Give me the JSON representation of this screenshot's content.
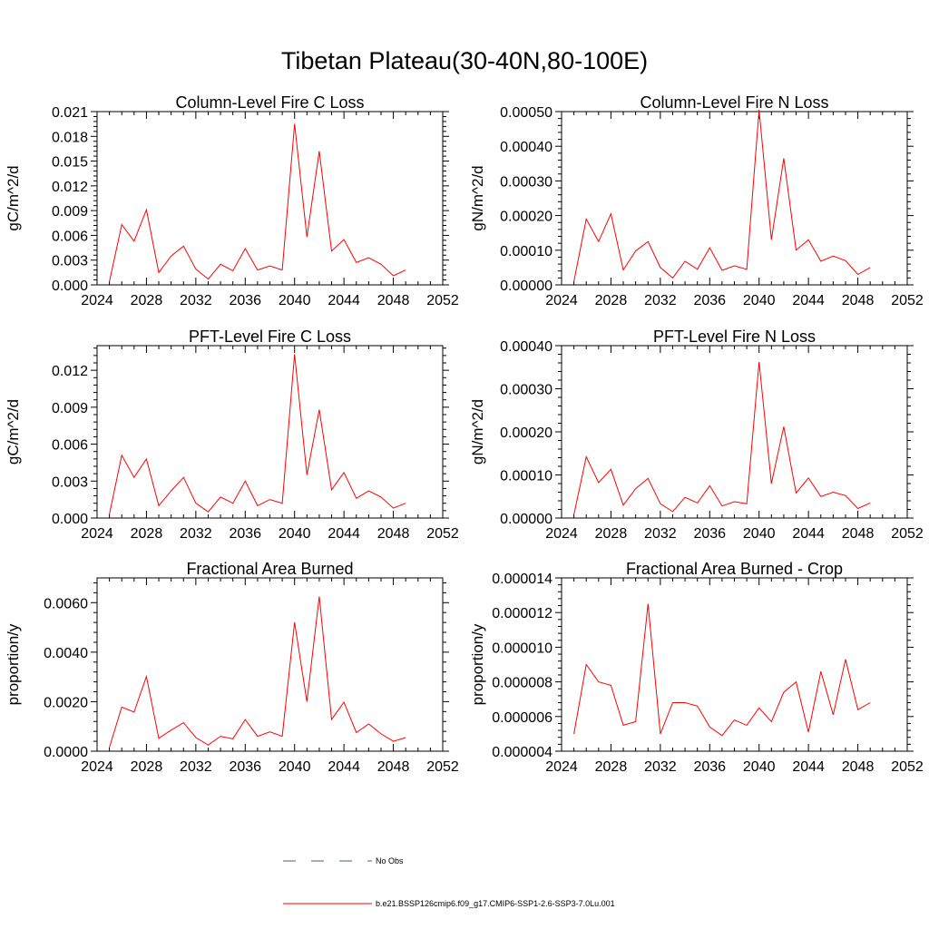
{
  "suptitle": "Tibetan Plateau(30-40N,80-100E)",
  "chart_data": [
    {
      "type": "line",
      "title": "Column-Level Fire C Loss",
      "ylabel": "gC/m^2/d",
      "xlim": [
        2024,
        2052
      ],
      "xticks": [
        2024,
        2028,
        2032,
        2036,
        2040,
        2044,
        2048,
        2052
      ],
      "ylim": [
        0,
        0.021
      ],
      "yticks": [
        "0.000",
        "0.003",
        "0.006",
        "0.009",
        "0.012",
        "0.015",
        "0.018",
        "0.021"
      ],
      "x": [
        2025,
        2026,
        2027,
        2028,
        2029,
        2030,
        2031,
        2032,
        2033,
        2034,
        2035,
        2036,
        2037,
        2038,
        2039,
        2040,
        2041,
        2042,
        2043,
        2044,
        2045,
        2046,
        2047,
        2048,
        2049
      ],
      "series": [
        {
          "name": "b.e21.BSSP126cmip6.f09_g17.CMIP6-SSP1-2.6-SSP3-7.0Lu.001",
          "color": "#ff0000",
          "values": [
            0.0004,
            0.0073,
            0.0053,
            0.0091,
            0.0015,
            0.0035,
            0.0047,
            0.0019,
            0.0007,
            0.0025,
            0.0017,
            0.0044,
            0.0018,
            0.0023,
            0.0018,
            0.0195,
            0.0058,
            0.0162,
            0.0041,
            0.0055,
            0.0027,
            0.0033,
            0.0025,
            0.0011,
            0.0018
          ]
        }
      ]
    },
    {
      "type": "line",
      "title": "Column-Level Fire N Loss",
      "ylabel": "gN/m^2/d",
      "xlim": [
        2024,
        2052
      ],
      "xticks": [
        2024,
        2028,
        2032,
        2036,
        2040,
        2044,
        2048,
        2052
      ],
      "ylim": [
        0,
        0.0005
      ],
      "yticks": [
        "0.00000",
        "0.00010",
        "0.00020",
        "0.00030",
        "0.00040",
        "0.00050"
      ],
      "x": [
        2025,
        2026,
        2027,
        2028,
        2029,
        2030,
        2031,
        2032,
        2033,
        2034,
        2035,
        2036,
        2037,
        2038,
        2039,
        2040,
        2041,
        2042,
        2043,
        2044,
        2045,
        2046,
        2047,
        2048,
        2049
      ],
      "series": [
        {
          "name": "b.e21.BSSP126cmip6.f09_g17.CMIP6-SSP1-2.6-SSP3-7.0Lu.001",
          "color": "#ff0000",
          "values": [
            1e-05,
            0.00019,
            0.000125,
            0.000205,
            4.3e-05,
            9.8e-05,
            0.000125,
            5e-05,
            2e-05,
            6.8e-05,
            4.5e-05,
            0.000107,
            4.2e-05,
            5.5e-05,
            4.5e-05,
            0.000505,
            0.00013,
            0.000365,
            0.0001,
            0.00013,
            6.8e-05,
            8.3e-05,
            7e-05,
            3e-05,
            5e-05
          ]
        }
      ]
    },
    {
      "type": "line",
      "title": "PFT-Level Fire C Loss",
      "ylabel": "gC/m^2/d",
      "xlim": [
        2024,
        2052
      ],
      "xticks": [
        2024,
        2028,
        2032,
        2036,
        2040,
        2044,
        2048,
        2052
      ],
      "ylim": [
        0,
        0.014
      ],
      "yticks": [
        "0.000",
        "0.003",
        "0.006",
        "0.009",
        "0.012"
      ],
      "x": [
        2025,
        2026,
        2027,
        2028,
        2029,
        2030,
        2031,
        2032,
        2033,
        2034,
        2035,
        2036,
        2037,
        2038,
        2039,
        2040,
        2041,
        2042,
        2043,
        2044,
        2045,
        2046,
        2047,
        2048,
        2049
      ],
      "series": [
        {
          "name": "b.e21.BSSP126cmip6.f09_g17.CMIP6-SSP1-2.6-SSP3-7.0Lu.001",
          "color": "#ff0000",
          "values": [
            0.0003,
            0.0051,
            0.0033,
            0.0048,
            0.001,
            0.0022,
            0.0033,
            0.0012,
            0.0005,
            0.0017,
            0.0012,
            0.003,
            0.001,
            0.0015,
            0.0012,
            0.0133,
            0.0035,
            0.0088,
            0.0023,
            0.0037,
            0.0016,
            0.0022,
            0.0017,
            0.0008,
            0.0012
          ]
        }
      ]
    },
    {
      "type": "line",
      "title": "PFT-Level Fire N Loss",
      "ylabel": "gN/m^2/d",
      "xlim": [
        2024,
        2052
      ],
      "xticks": [
        2024,
        2028,
        2032,
        2036,
        2040,
        2044,
        2048,
        2052
      ],
      "ylim": [
        0,
        0.0004
      ],
      "yticks": [
        "0.00000",
        "0.00010",
        "0.00020",
        "0.00030",
        "0.00040"
      ],
      "x": [
        2025,
        2026,
        2027,
        2028,
        2029,
        2030,
        2031,
        2032,
        2033,
        2034,
        2035,
        2036,
        2037,
        2038,
        2039,
        2040,
        2041,
        2042,
        2043,
        2044,
        2045,
        2046,
        2047,
        2048,
        2049
      ],
      "series": [
        {
          "name": "b.e21.BSSP126cmip6.f09_g17.CMIP6-SSP1-2.6-SSP3-7.0Lu.001",
          "color": "#ff0000",
          "values": [
            8e-06,
            0.000142,
            8.2e-05,
            0.000113,
            3e-05,
            6.8e-05,
            9.2e-05,
            3.3e-05,
            1.5e-05,
            4.8e-05,
            3.5e-05,
            7.5e-05,
            2.8e-05,
            3.8e-05,
            3.3e-05,
            0.000362,
            8e-05,
            0.000212,
            5.8e-05,
            9.3e-05,
            5e-05,
            6e-05,
            5.2e-05,
            2.2e-05,
            3.5e-05
          ]
        }
      ]
    },
    {
      "type": "line",
      "title": "Fractional Area Burned",
      "ylabel": "proportion/y",
      "xlim": [
        2024,
        2052
      ],
      "xticks": [
        2024,
        2028,
        2032,
        2036,
        2040,
        2044,
        2048,
        2052
      ],
      "ylim": [
        0,
        0.007
      ],
      "yticks": [
        "0.0000",
        "0.0020",
        "0.0040",
        "0.0060"
      ],
      "x": [
        2025,
        2026,
        2027,
        2028,
        2029,
        2030,
        2031,
        2032,
        2033,
        2034,
        2035,
        2036,
        2037,
        2038,
        2039,
        2040,
        2041,
        2042,
        2043,
        2044,
        2045,
        2046,
        2047,
        2048,
        2049
      ],
      "series": [
        {
          "name": "b.e21.BSSP126cmip6.f09_g17.CMIP6-SSP1-2.6-SSP3-7.0Lu.001",
          "color": "#ff0000",
          "values": [
            0.00015,
            0.00178,
            0.00158,
            0.00302,
            0.00052,
            0.00085,
            0.00115,
            0.00055,
            0.00025,
            0.0006,
            0.0005,
            0.00128,
            0.0006,
            0.00078,
            0.0006,
            0.0052,
            0.002,
            0.00625,
            0.00128,
            0.00198,
            0.00075,
            0.0011,
            0.0007,
            0.0004,
            0.00055
          ]
        }
      ]
    },
    {
      "type": "line",
      "title": "Fractional Area Burned - Crop",
      "ylabel": "proportion/y",
      "xlim": [
        2024,
        2052
      ],
      "xticks": [
        2024,
        2028,
        2032,
        2036,
        2040,
        2044,
        2048,
        2052
      ],
      "ylim": [
        4e-06,
        1.4e-05
      ],
      "yticks": [
        "0.000004",
        "0.000006",
        "0.000008",
        "0.000010",
        "0.000012",
        "0.000014"
      ],
      "x": [
        2025,
        2026,
        2027,
        2028,
        2029,
        2030,
        2031,
        2032,
        2033,
        2034,
        2035,
        2036,
        2037,
        2038,
        2039,
        2040,
        2041,
        2042,
        2043,
        2044,
        2045,
        2046,
        2047,
        2048,
        2049
      ],
      "series": [
        {
          "name": "b.e21.BSSP126cmip6.f09_g17.CMIP6-SSP1-2.6-SSP3-7.0Lu.001",
          "color": "#ff0000",
          "values": [
            5e-06,
            9e-06,
            8e-06,
            7.8e-06,
            5.5e-06,
            5.7e-06,
            1.25e-05,
            5e-06,
            6.8e-06,
            6.8e-06,
            6.6e-06,
            5.4e-06,
            4.9e-06,
            5.8e-06,
            5.5e-06,
            6.5e-06,
            5.7e-06,
            7.4e-06,
            8e-06,
            5.1e-06,
            8.6e-06,
            6.1e-06,
            9.3e-06,
            6.4e-06,
            6.8e-06
          ]
        }
      ]
    }
  ],
  "legend": [
    {
      "label": "No Obs",
      "color": "#4a5a9a",
      "dash": "dashed"
    },
    {
      "label": "b.e21.BSSP126cmip6.f09_g17.CMIP6-SSP1-2.6-SSP3-7.0Lu.001",
      "color": "#ff0000",
      "dash": "solid"
    }
  ]
}
